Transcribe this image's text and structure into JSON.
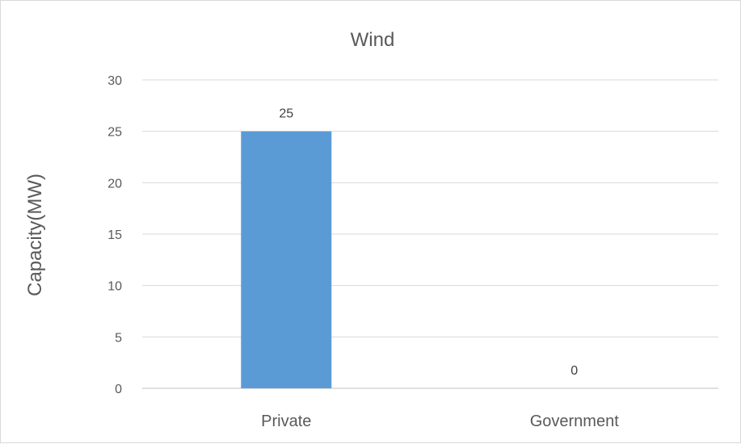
{
  "chart_data": {
    "type": "bar",
    "title": "Wind",
    "ylabel": "Capacity(MW)",
    "xlabel": "",
    "categories": [
      "Private",
      "Government"
    ],
    "values": [
      25,
      0
    ],
    "data_labels": [
      "25",
      "0"
    ],
    "ylim": [
      0,
      30
    ],
    "yticks": [
      0,
      5,
      10,
      15,
      20,
      25,
      30
    ],
    "grid": true,
    "legend": "none",
    "bar_color": "#5B9BD5"
  }
}
